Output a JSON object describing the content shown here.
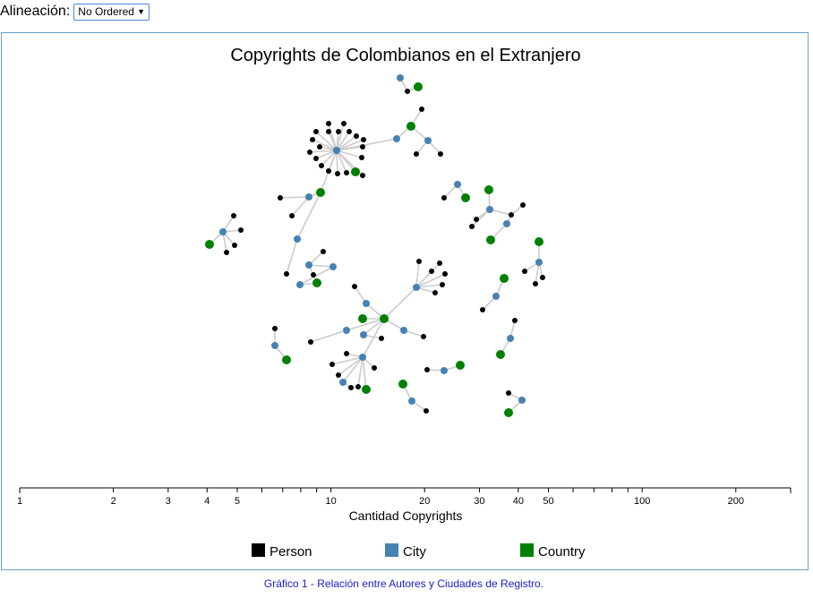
{
  "controls": {
    "label": "Alineación:",
    "select_value": "No Ordered"
  },
  "caption": "Gráfico 1 - Relación entre Autores y Ciudades de Registro.",
  "colors": {
    "person": "#000000",
    "city": "#4682b4",
    "country": "#008000",
    "link": "#cccccc",
    "border": "#6a9ec7"
  },
  "chart_data": {
    "type": "network",
    "title": "Copyrights de Colombianos en el Extranjero",
    "xlabel": "Cantidad Copyrights",
    "x_scale": "log",
    "xlim": [
      1,
      300
    ],
    "tick_labels": [
      "1",
      "2",
      "3",
      "4",
      "5",
      "10",
      "20",
      "30",
      "40",
      "50",
      "100",
      "200"
    ],
    "legend_position": "bottom",
    "legend": [
      {
        "label": "Person",
        "type": "person"
      },
      {
        "label": "City",
        "type": "city"
      },
      {
        "label": "Country",
        "type": "country"
      }
    ],
    "nodes": [
      {
        "t": "city",
        "p": [
          375,
          168
        ]
      },
      {
        "t": "person",
        "p": [
          366,
          138
        ]
      },
      {
        "t": "person",
        "p": [
          383,
          138
        ]
      },
      {
        "t": "person",
        "p": [
          352,
          147
        ]
      },
      {
        "t": "person",
        "p": [
          366,
          147
        ]
      },
      {
        "t": "person",
        "p": [
          377,
          147
        ]
      },
      {
        "t": "person",
        "p": [
          389,
          147
        ]
      },
      {
        "t": "person",
        "p": [
          348,
          156
        ]
      },
      {
        "t": "person",
        "p": [
          397,
          152
        ]
      },
      {
        "t": "person",
        "p": [
          405,
          156
        ]
      },
      {
        "t": "person",
        "p": [
          356,
          164
        ]
      },
      {
        "t": "person",
        "p": [
          404,
          164
        ]
      },
      {
        "t": "person",
        "p": [
          345,
          170
        ]
      },
      {
        "t": "person",
        "p": [
          403,
          176
        ]
      },
      {
        "t": "person",
        "p": [
          352,
          177
        ]
      },
      {
        "t": "person",
        "p": [
          358,
          185
        ]
      },
      {
        "t": "person",
        "p": [
          366,
          191
        ]
      },
      {
        "t": "person",
        "p": [
          376,
          194
        ]
      },
      {
        "t": "person",
        "p": [
          386,
          193
        ]
      },
      {
        "t": "person",
        "p": [
          404,
          196
        ]
      },
      {
        "t": "country",
        "p": [
          396,
          192
        ]
      },
      {
        "t": "city",
        "p": [
          442,
          155
        ]
      },
      {
        "t": "country",
        "p": [
          458,
          141
        ]
      },
      {
        "t": "person",
        "p": [
          470,
          122
        ]
      },
      {
        "t": "city",
        "p": [
          477,
          157
        ]
      },
      {
        "t": "person",
        "p": [
          464,
          172
        ]
      },
      {
        "t": "person",
        "p": [
          491,
          172
        ]
      },
      {
        "t": "city",
        "p": [
          446,
          87
        ]
      },
      {
        "t": "person",
        "p": [
          454,
          102
        ]
      },
      {
        "t": "country",
        "p": [
          466,
          97
        ]
      },
      {
        "t": "country",
        "p": [
          357,
          215
        ]
      },
      {
        "t": "city",
        "p": [
          344,
          220
        ]
      },
      {
        "t": "person",
        "p": [
          312,
          221
        ]
      },
      {
        "t": "person",
        "p": [
          325,
          241
        ]
      },
      {
        "t": "city",
        "p": [
          331,
          267
        ]
      },
      {
        "t": "person",
        "p": [
          319,
          306
        ]
      },
      {
        "t": "city",
        "p": [
          248,
          259
        ]
      },
      {
        "t": "person",
        "p": [
          260,
          241
        ]
      },
      {
        "t": "person",
        "p": [
          268,
          257
        ]
      },
      {
        "t": "person",
        "p": [
          261,
          274
        ]
      },
      {
        "t": "person",
        "p": [
          252,
          282
        ]
      },
      {
        "t": "country",
        "p": [
          233,
          273
        ]
      },
      {
        "t": "person",
        "p": [
          360,
          281
        ]
      },
      {
        "t": "city",
        "p": [
          344,
          296
        ]
      },
      {
        "t": "city",
        "p": [
          371,
          298
        ]
      },
      {
        "t": "person",
        "p": [
          349,
          307
        ]
      },
      {
        "t": "city",
        "p": [
          334,
          318
        ]
      },
      {
        "t": "country",
        "p": [
          353,
          316
        ]
      },
      {
        "t": "country",
        "p": [
          428,
          356
        ]
      },
      {
        "t": "city",
        "p": [
          408,
          339
        ]
      },
      {
        "t": "person",
        "p": [
          395,
          320
        ]
      },
      {
        "t": "country",
        "p": [
          404,
          356
        ]
      },
      {
        "t": "city",
        "p": [
          386,
          369
        ]
      },
      {
        "t": "person",
        "p": [
          346,
          382
        ]
      },
      {
        "t": "city",
        "p": [
          405,
          374
        ]
      },
      {
        "t": "person",
        "p": [
          425,
          378
        ]
      },
      {
        "t": "city",
        "p": [
          450,
          369
        ]
      },
      {
        "t": "person",
        "p": [
          472,
          376
        ]
      },
      {
        "t": "city",
        "p": [
          464,
          321
        ]
      },
      {
        "t": "person",
        "p": [
          467,
          292
        ]
      },
      {
        "t": "person",
        "p": [
          490,
          294
        ]
      },
      {
        "t": "person",
        "p": [
          481,
          303
        ]
      },
      {
        "t": "person",
        "p": [
          496,
          306
        ]
      },
      {
        "t": "person",
        "p": [
          493,
          318
        ]
      },
      {
        "t": "person",
        "p": [
          485,
          327
        ]
      },
      {
        "t": "city",
        "p": [
          404,
          399
        ]
      },
      {
        "t": "person",
        "p": [
          386,
          395
        ]
      },
      {
        "t": "person",
        "p": [
          417,
          411
        ]
      },
      {
        "t": "person",
        "p": [
          370,
          407
        ]
      },
      {
        "t": "person",
        "p": [
          377,
          419
        ]
      },
      {
        "t": "city",
        "p": [
          382,
          427
        ]
      },
      {
        "t": "person",
        "p": [
          391,
          433
        ]
      },
      {
        "t": "person",
        "p": [
          399,
          432
        ]
      },
      {
        "t": "country",
        "p": [
          408,
          435
        ]
      },
      {
        "t": "person",
        "p": [
          306,
          367
        ]
      },
      {
        "t": "city",
        "p": [
          306,
          386
        ]
      },
      {
        "t": "country",
        "p": [
          319,
          402
        ]
      },
      {
        "t": "city",
        "p": [
          510,
          206
        ]
      },
      {
        "t": "person",
        "p": [
          495,
          221
        ]
      },
      {
        "t": "country",
        "p": [
          519,
          221
        ]
      },
      {
        "t": "country",
        "p": [
          545,
          212
        ]
      },
      {
        "t": "city",
        "p": [
          546,
          234
        ]
      },
      {
        "t": "person",
        "p": [
          531,
          245
        ]
      },
      {
        "t": "person",
        "p": [
          526,
          253
        ]
      },
      {
        "t": "person",
        "p": [
          570,
          240
        ]
      },
      {
        "t": "person",
        "p": [
          583,
          229
        ]
      },
      {
        "t": "city",
        "p": [
          565,
          250
        ]
      },
      {
        "t": "country",
        "p": [
          547,
          268
        ]
      },
      {
        "t": "country",
        "p": [
          601,
          270
        ]
      },
      {
        "t": "city",
        "p": [
          601,
          293
        ]
      },
      {
        "t": "person",
        "p": [
          585,
          303
        ]
      },
      {
        "t": "person",
        "p": [
          597,
          317
        ]
      },
      {
        "t": "person",
        "p": [
          605,
          310
        ]
      },
      {
        "t": "country",
        "p": [
          562,
          311
        ]
      },
      {
        "t": "city",
        "p": [
          553,
          331
        ]
      },
      {
        "t": "person",
        "p": [
          538,
          346
        ]
      },
      {
        "t": "person",
        "p": [
          574,
          358
        ]
      },
      {
        "t": "city",
        "p": [
          569,
          378
        ]
      },
      {
        "t": "country",
        "p": [
          558,
          396
        ]
      },
      {
        "t": "person",
        "p": [
          476,
          413
        ]
      },
      {
        "t": "city",
        "p": [
          495,
          414
        ]
      },
      {
        "t": "country",
        "p": [
          513,
          408
        ]
      },
      {
        "t": "country",
        "p": [
          449,
          429
        ]
      },
      {
        "t": "city",
        "p": [
          459,
          448
        ]
      },
      {
        "t": "person",
        "p": [
          475,
          459
        ]
      },
      {
        "t": "person",
        "p": [
          567,
          439
        ]
      },
      {
        "t": "city",
        "p": [
          582,
          447
        ]
      },
      {
        "t": "country",
        "p": [
          567,
          461
        ]
      }
    ],
    "links": [
      [
        0,
        1
      ],
      [
        0,
        2
      ],
      [
        0,
        3
      ],
      [
        0,
        4
      ],
      [
        0,
        5
      ],
      [
        0,
        6
      ],
      [
        0,
        7
      ],
      [
        0,
        8
      ],
      [
        0,
        9
      ],
      [
        0,
        10
      ],
      [
        0,
        11
      ],
      [
        0,
        12
      ],
      [
        0,
        13
      ],
      [
        0,
        14
      ],
      [
        0,
        15
      ],
      [
        0,
        16
      ],
      [
        0,
        17
      ],
      [
        0,
        18
      ],
      [
        0,
        19
      ],
      [
        0,
        20
      ],
      [
        0,
        21
      ],
      [
        0,
        30
      ],
      [
        21,
        22
      ],
      [
        22,
        23
      ],
      [
        22,
        24
      ],
      [
        24,
        25
      ],
      [
        24,
        26
      ],
      [
        27,
        28
      ],
      [
        28,
        29
      ],
      [
        30,
        31
      ],
      [
        31,
        32
      ],
      [
        31,
        33
      ],
      [
        30,
        34
      ],
      [
        34,
        35
      ],
      [
        36,
        37
      ],
      [
        36,
        38
      ],
      [
        36,
        39
      ],
      [
        36,
        40
      ],
      [
        36,
        41
      ],
      [
        42,
        43
      ],
      [
        43,
        44
      ],
      [
        43,
        45
      ],
      [
        44,
        46
      ],
      [
        46,
        47
      ],
      [
        45,
        47
      ],
      [
        48,
        49
      ],
      [
        49,
        50
      ],
      [
        48,
        51
      ],
      [
        48,
        52
      ],
      [
        52,
        53
      ],
      [
        48,
        54
      ],
      [
        54,
        55
      ],
      [
        48,
        56
      ],
      [
        56,
        57
      ],
      [
        48,
        58
      ],
      [
        58,
        59
      ],
      [
        58,
        60
      ],
      [
        58,
        61
      ],
      [
        58,
        62
      ],
      [
        58,
        63
      ],
      [
        58,
        64
      ],
      [
        48,
        65
      ],
      [
        65,
        66
      ],
      [
        65,
        67
      ],
      [
        65,
        68
      ],
      [
        65,
        69
      ],
      [
        65,
        70
      ],
      [
        70,
        71
      ],
      [
        65,
        72
      ],
      [
        65,
        73
      ],
      [
        74,
        75
      ],
      [
        75,
        76
      ],
      [
        77,
        78
      ],
      [
        77,
        79
      ],
      [
        80,
        81
      ],
      [
        81,
        82
      ],
      [
        81,
        83
      ],
      [
        81,
        84
      ],
      [
        84,
        85
      ],
      [
        84,
        86
      ],
      [
        86,
        87
      ],
      [
        88,
        89
      ],
      [
        89,
        90
      ],
      [
        89,
        91
      ],
      [
        89,
        92
      ],
      [
        93,
        94
      ],
      [
        94,
        95
      ],
      [
        96,
        97
      ],
      [
        97,
        98
      ],
      [
        99,
        100
      ],
      [
        100,
        101
      ],
      [
        102,
        103
      ],
      [
        103,
        104
      ],
      [
        105,
        106
      ],
      [
        106,
        107
      ]
    ]
  }
}
